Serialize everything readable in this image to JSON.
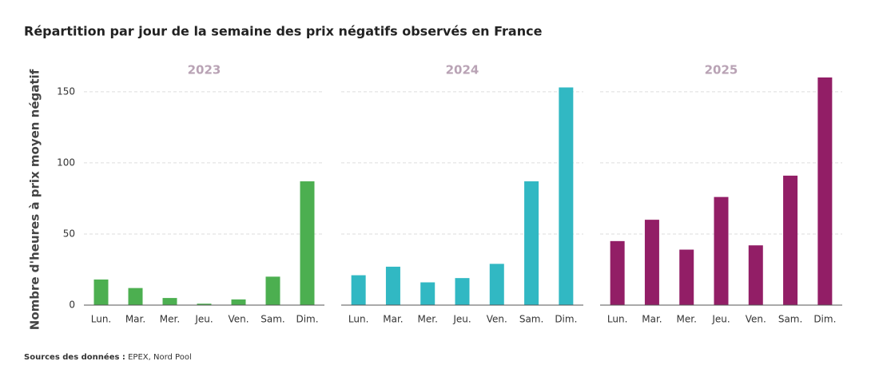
{
  "title": "Répartition par jour de la semaine des prix négatifs observés en France",
  "y_label": "Nombre d'heures à prix moyen négatif",
  "source": {
    "label": "Sources des données :",
    "text": "EPEX, Nord Pool"
  },
  "chart_data": [
    {
      "type": "bar",
      "title": "2023",
      "categories": [
        "Lun.",
        "Mar.",
        "Mer.",
        "Jeu.",
        "Ven.",
        "Sam.",
        "Dim."
      ],
      "values": [
        18,
        12,
        5,
        1,
        4,
        20,
        87
      ],
      "color": "#4caf50",
      "ylim": [
        0,
        160
      ],
      "yticks": [
        0,
        50,
        100,
        150
      ],
      "grid": true
    },
    {
      "type": "bar",
      "title": "2024",
      "categories": [
        "Lun.",
        "Mar.",
        "Mer.",
        "Jeu.",
        "Ven.",
        "Sam.",
        "Dim."
      ],
      "values": [
        21,
        27,
        16,
        19,
        29,
        87,
        153
      ],
      "color": "#31b8c3",
      "ylim": [
        0,
        160
      ],
      "yticks": [
        0,
        50,
        100,
        150
      ],
      "grid": true
    },
    {
      "type": "bar",
      "title": "2025",
      "categories": [
        "Lun.",
        "Mar.",
        "Mer.",
        "Jeu.",
        "Ven.",
        "Sam.",
        "Dim."
      ],
      "values": [
        45,
        60,
        39,
        76,
        42,
        91,
        160
      ],
      "color": "#921e66",
      "ylim": [
        0,
        160
      ],
      "yticks": [
        0,
        50,
        100,
        150
      ],
      "grid": true
    }
  ]
}
